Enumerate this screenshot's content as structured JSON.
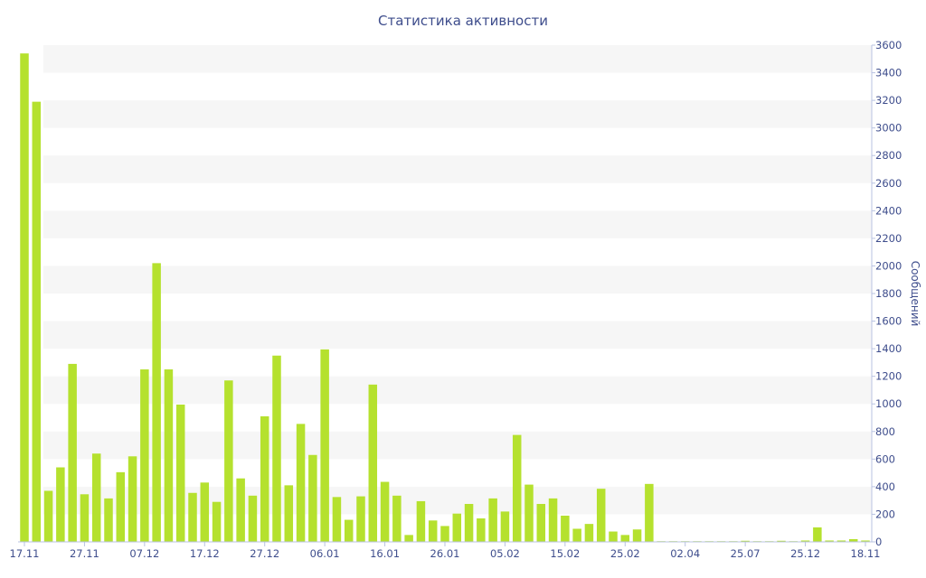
{
  "chart_data": {
    "type": "bar",
    "title": "Статистика активности",
    "ylabel": "Сообщений",
    "xlabel": "",
    "ylim": [
      0,
      3600
    ],
    "y_ticks": [
      0,
      200,
      400,
      600,
      800,
      1000,
      1200,
      1400,
      1600,
      1800,
      2000,
      2200,
      2400,
      2600,
      2800,
      3000,
      3200,
      3400,
      3600
    ],
    "x_tick_labels": [
      {
        "label": "17.11",
        "index": 0
      },
      {
        "label": "27.11",
        "index": 5
      },
      {
        "label": "07.12",
        "index": 10
      },
      {
        "label": "17.12",
        "index": 15
      },
      {
        "label": "27.12",
        "index": 20
      },
      {
        "label": "06.01",
        "index": 25
      },
      {
        "label": "16.01",
        "index": 30
      },
      {
        "label": "26.01",
        "index": 35
      },
      {
        "label": "05.02",
        "index": 40
      },
      {
        "label": "15.02",
        "index": 45
      },
      {
        "label": "25.02",
        "index": 50
      },
      {
        "label": "02.04",
        "index": 55
      },
      {
        "label": "25.07",
        "index": 60
      },
      {
        "label": "25.12",
        "index": 65
      },
      {
        "label": "18.11",
        "index": 70
      }
    ],
    "values": [
      3540,
      3190,
      370,
      540,
      1290,
      345,
      640,
      315,
      505,
      620,
      1250,
      2020,
      1250,
      995,
      355,
      430,
      290,
      1170,
      460,
      335,
      910,
      1350,
      410,
      855,
      630,
      1395,
      325,
      160,
      330,
      1140,
      435,
      335,
      50,
      295,
      155,
      115,
      205,
      275,
      170,
      315,
      220,
      775,
      415,
      275,
      315,
      190,
      95,
      130,
      385,
      75,
      50,
      90,
      420,
      5,
      5,
      5,
      5,
      5,
      5,
      5,
      8,
      5,
      5,
      8,
      5,
      10,
      105,
      10,
      10,
      20,
      10
    ],
    "grid": "horizontal bands",
    "colors": {
      "bar": "#b5e12e",
      "band": "#f6f6f6",
      "axis_text": "#3e4d8c",
      "axis_line": "#b9c3e2"
    }
  }
}
